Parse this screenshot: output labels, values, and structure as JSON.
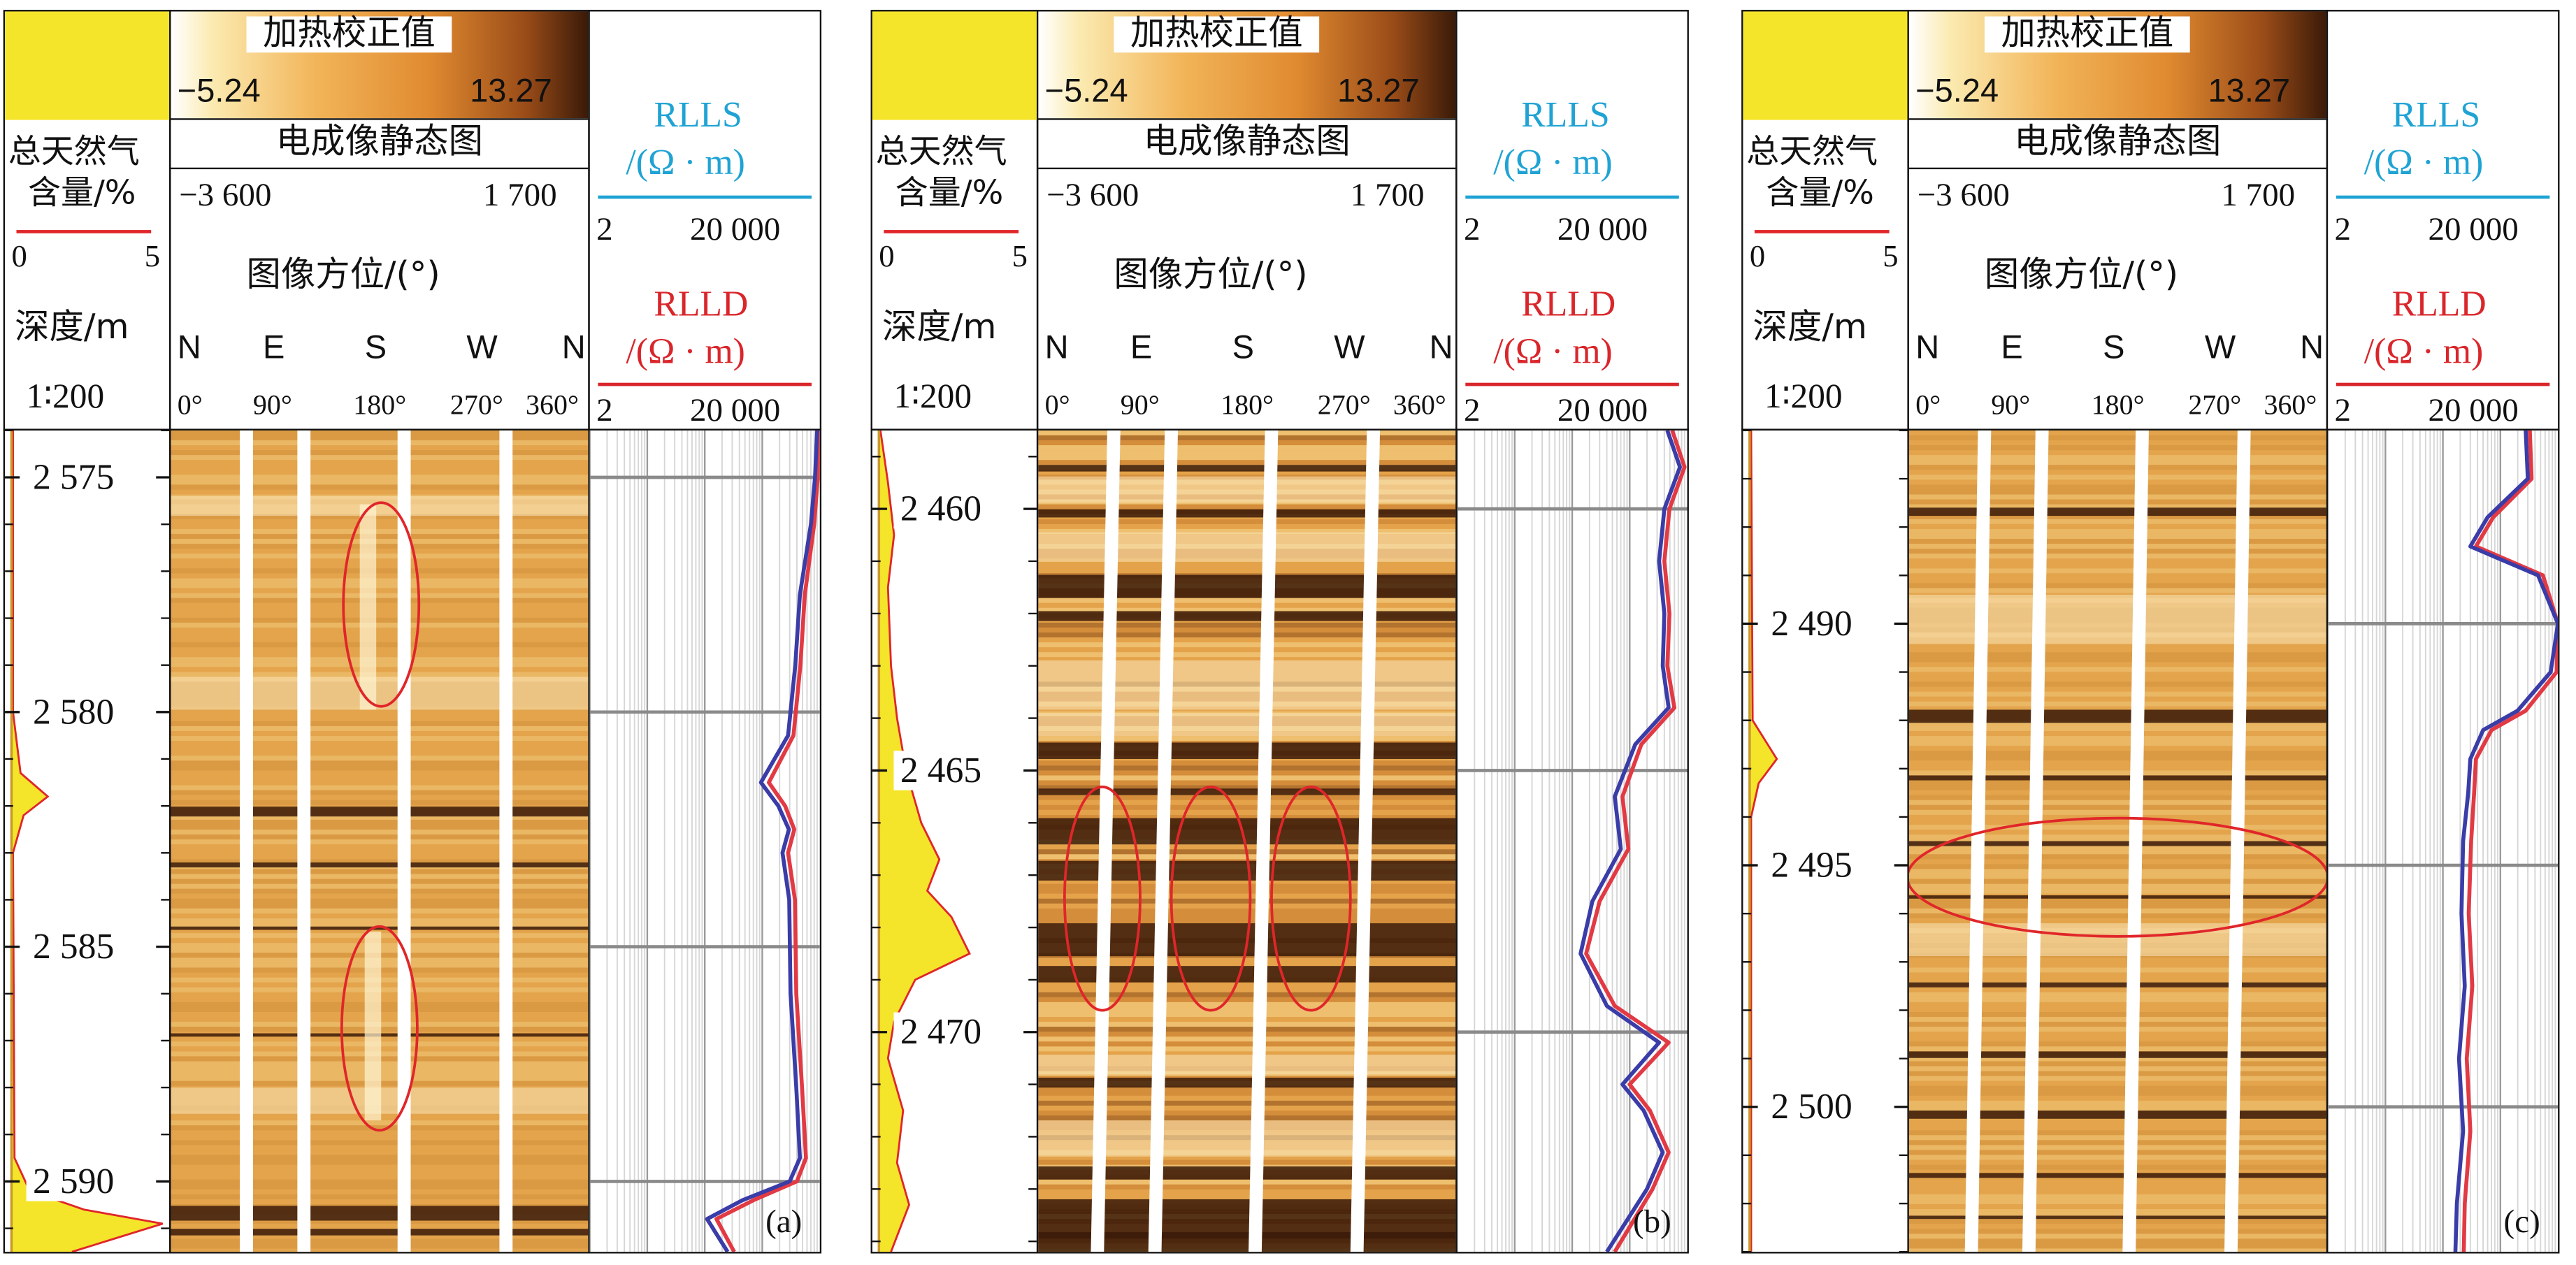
{
  "colors": {
    "gas": "#f5e52a",
    "gas_line": "#e0262a",
    "rlls": "#1fa3d4",
    "rlld": "#d9262b",
    "curve_rlls": "#3a3ca8",
    "curve_rlld": "#e23a44",
    "ellipse": "#e0262a",
    "heat_low": "#ffffff",
    "heat_mid": "#e08a30",
    "heat_high": "#3a1a08",
    "image_base": "#e3a44c"
  },
  "header": {
    "heat_title": "加热校正值",
    "heat_min": "−5.24",
    "heat_max": "13.27",
    "static_title": "电成像静态图",
    "static_min": "−3 600",
    "static_max": "1 700",
    "azimuth_title": "图像方位/(°)",
    "compass": [
      "N",
      "E",
      "S",
      "W",
      "N"
    ],
    "degrees": [
      "0°",
      "90°",
      "180°",
      "270°",
      "360°"
    ],
    "gas_title_1": "总天然气",
    "gas_title_2": "含量/%",
    "gas_min": "0",
    "gas_max": "5",
    "depth_title": "深度/m",
    "scale_text": "1∶200",
    "rlls_name": "RLLS",
    "rlls_unit": "/(Ω · m)",
    "rlls_min": "2",
    "rlls_max": "20 000",
    "rlld_name": "RLLD",
    "rlld_unit": "/(Ω · m)",
    "rlld_min": "2",
    "rlld_max": "20 000"
  },
  "panels": [
    {
      "label": "(a)",
      "depth_ticks": [
        "2 575",
        "2 580",
        "2 585",
        "2 590"
      ],
      "depth_range": [
        2574.0,
        2591.5
      ]
    },
    {
      "label": "(b)",
      "depth_ticks": [
        "2 460",
        "2 465",
        "2 470"
      ],
      "depth_range": [
        2458.5,
        2474.2
      ]
    },
    {
      "label": "(c)",
      "depth_ticks": [
        "2 490",
        "2 495",
        "2 500"
      ],
      "depth_range": [
        2486.0,
        2503.0
      ]
    }
  ],
  "chart_data": [
    {
      "type": "line",
      "panel": "(a)",
      "y_axis": "深度/m",
      "ylim": [
        2574.0,
        2591.5
      ],
      "gas": {
        "xlim": [
          0,
          5
        ],
        "points": [
          [
            2574.0,
            0.05
          ],
          [
            2580.0,
            0.05
          ],
          [
            2581.3,
            0.3
          ],
          [
            2581.8,
            1.2
          ],
          [
            2582.2,
            0.4
          ],
          [
            2583.0,
            0.05
          ],
          [
            2589.5,
            0.1
          ],
          [
            2590.2,
            0.6
          ],
          [
            2590.6,
            2.4
          ],
          [
            2590.9,
            5.0
          ],
          [
            2591.2,
            3.5
          ],
          [
            2591.5,
            2.0
          ]
        ]
      },
      "series": [
        {
          "name": "RLLS",
          "points": [
            [
              2574.0,
              18000
            ],
            [
              2575.0,
              16500
            ],
            [
              2576.0,
              14000
            ],
            [
              2577.5,
              9000
            ],
            [
              2579.0,
              7500
            ],
            [
              2580.5,
              5600
            ],
            [
              2581.5,
              1900
            ],
            [
              2582.0,
              3800
            ],
            [
              2582.5,
              5800
            ],
            [
              2583.0,
              4500
            ],
            [
              2584.0,
              5900
            ],
            [
              2586.0,
              6200
            ],
            [
              2588.0,
              7800
            ],
            [
              2589.5,
              9000
            ],
            [
              2590.0,
              6000
            ],
            [
              2590.4,
              900
            ],
            [
              2590.8,
              220
            ],
            [
              2591.5,
              500
            ]
          ]
        },
        {
          "name": "RLLD",
          "points": [
            [
              2574.0,
              19500
            ],
            [
              2575.0,
              18500
            ],
            [
              2576.0,
              16000
            ],
            [
              2577.5,
              11000
            ],
            [
              2579.0,
              9200
            ],
            [
              2580.5,
              7000
            ],
            [
              2581.5,
              2600
            ],
            [
              2582.0,
              5000
            ],
            [
              2582.5,
              7200
            ],
            [
              2583.0,
              5600
            ],
            [
              2584.0,
              7400
            ],
            [
              2586.0,
              7800
            ],
            [
              2588.0,
              9800
            ],
            [
              2589.5,
              11500
            ],
            [
              2590.0,
              8000
            ],
            [
              2590.4,
              1400
            ],
            [
              2590.8,
              320
            ],
            [
              2591.5,
              650
            ]
          ]
        }
      ]
    },
    {
      "type": "line",
      "panel": "(b)",
      "y_axis": "深度/m",
      "ylim": [
        2458.5,
        2474.2
      ],
      "gas": {
        "xlim": [
          0,
          5
        ],
        "points": [
          [
            2458.5,
            0.05
          ],
          [
            2459.5,
            0.3
          ],
          [
            2460.5,
            0.5
          ],
          [
            2461.5,
            0.3
          ],
          [
            2463.0,
            0.4
          ],
          [
            2464.0,
            0.6
          ],
          [
            2465.0,
            0.9
          ],
          [
            2466.0,
            1.4
          ],
          [
            2466.7,
            2.0
          ],
          [
            2467.3,
            1.6
          ],
          [
            2467.8,
            2.4
          ],
          [
            2468.5,
            3.0
          ],
          [
            2469.0,
            1.2
          ],
          [
            2469.8,
            0.5
          ],
          [
            2470.5,
            0.3
          ],
          [
            2471.5,
            0.8
          ],
          [
            2472.5,
            0.6
          ],
          [
            2473.3,
            1.0
          ],
          [
            2474.2,
            0.4
          ]
        ]
      },
      "series": [
        {
          "name": "RLLS",
          "points": [
            [
              2458.5,
              9000
            ],
            [
              2459.2,
              15000
            ],
            [
              2460.0,
              8000
            ],
            [
              2461.0,
              6500
            ],
            [
              2462.0,
              8000
            ],
            [
              2463.0,
              7500
            ],
            [
              2463.8,
              9500
            ],
            [
              2464.5,
              2500
            ],
            [
              2465.5,
              1100
            ],
            [
              2466.5,
              1400
            ],
            [
              2467.5,
              450
            ],
            [
              2468.5,
              280
            ],
            [
              2469.5,
              800
            ],
            [
              2470.2,
              6500
            ],
            [
              2471.0,
              1500
            ],
            [
              2471.5,
              3500
            ],
            [
              2472.3,
              7500
            ],
            [
              2473.0,
              4000
            ],
            [
              2474.2,
              800
            ]
          ]
        },
        {
          "name": "RLLD",
          "points": [
            [
              2458.5,
              11000
            ],
            [
              2459.2,
              18000
            ],
            [
              2460.0,
              9800
            ],
            [
              2461.0,
              8000
            ],
            [
              2462.0,
              9800
            ],
            [
              2463.0,
              9000
            ],
            [
              2463.8,
              12000
            ],
            [
              2464.5,
              3200
            ],
            [
              2465.5,
              1500
            ],
            [
              2466.5,
              1900
            ],
            [
              2467.5,
              600
            ],
            [
              2468.5,
              350
            ],
            [
              2469.5,
              1100
            ],
            [
              2470.2,
              9500
            ],
            [
              2471.0,
              2000
            ],
            [
              2471.5,
              4500
            ],
            [
              2472.3,
              9500
            ],
            [
              2473.0,
              5000
            ],
            [
              2474.2,
              1100
            ]
          ]
        }
      ]
    },
    {
      "type": "line",
      "panel": "(c)",
      "y_axis": "深度/m",
      "ylim": [
        2486.0,
        2503.0
      ],
      "gas": {
        "xlim": [
          0,
          5
        ],
        "points": [
          [
            2486.0,
            0.05
          ],
          [
            2492.0,
            0.1
          ],
          [
            2492.4,
            0.5
          ],
          [
            2492.8,
            0.9
          ],
          [
            2493.3,
            0.3
          ],
          [
            2494.0,
            0.05
          ],
          [
            2503.0,
            0.05
          ]
        ]
      },
      "series": [
        {
          "name": "RLLS",
          "points": [
            [
              2486.0,
              5500
            ],
            [
              2487.0,
              6000
            ],
            [
              2487.8,
              1200
            ],
            [
              2488.4,
              600
            ],
            [
              2489.0,
              9000
            ],
            [
              2490.0,
              20000
            ],
            [
              2491.0,
              15000
            ],
            [
              2491.8,
              4000
            ],
            [
              2492.2,
              1000
            ],
            [
              2492.8,
              600
            ],
            [
              2493.5,
              550
            ],
            [
              2494.5,
              450
            ],
            [
              2496.0,
              420
            ],
            [
              2497.5,
              480
            ],
            [
              2499.0,
              380
            ],
            [
              2500.5,
              450
            ],
            [
              2502.0,
              350
            ],
            [
              2503.0,
              330
            ]
          ]
        },
        {
          "name": "RLLD",
          "points": [
            [
              2486.0,
              6500
            ],
            [
              2487.0,
              7000
            ],
            [
              2487.8,
              1500
            ],
            [
              2488.4,
              750
            ],
            [
              2489.0,
              11000
            ],
            [
              2490.0,
              24000
            ],
            [
              2491.0,
              19000
            ],
            [
              2491.8,
              5500
            ],
            [
              2492.2,
              1400
            ],
            [
              2492.8,
              750
            ],
            [
              2493.5,
              700
            ],
            [
              2494.5,
              620
            ],
            [
              2496.0,
              560
            ],
            [
              2497.5,
              650
            ],
            [
              2499.0,
              520
            ],
            [
              2500.5,
              600
            ],
            [
              2502.0,
              480
            ],
            [
              2503.0,
              460
            ]
          ]
        }
      ]
    }
  ]
}
